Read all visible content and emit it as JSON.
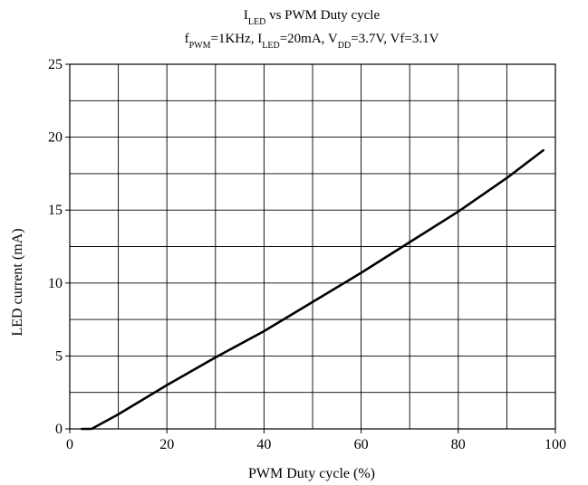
{
  "chart_data": {
    "type": "line",
    "title": {
      "parts": [
        {
          "text": "I",
          "sub": false
        },
        {
          "text": "LED",
          "sub": true
        },
        {
          "text": " vs PWM Duty cycle",
          "sub": false
        }
      ]
    },
    "subtitle": {
      "parts": [
        {
          "text": "f",
          "sub": false
        },
        {
          "text": "PWM",
          "sub": true
        },
        {
          "text": "=1KHz, I",
          "sub": false
        },
        {
          "text": "LED",
          "sub": true
        },
        {
          "text": "=20mA, V",
          "sub": false
        },
        {
          "text": "DD",
          "sub": true
        },
        {
          "text": "=3.7V, Vf=3.1V",
          "sub": false
        }
      ]
    },
    "xlabel": "PWM Duty cycle (%)",
    "ylabel": "LED current (mA)",
    "xlim": [
      0,
      100
    ],
    "ylim": [
      0,
      25
    ],
    "x_ticks": [
      0,
      20,
      40,
      60,
      80,
      100
    ],
    "y_ticks": [
      0,
      5,
      10,
      15,
      20,
      25
    ],
    "x_grid_step": 10,
    "y_grid_step": 2.5,
    "grid": true,
    "line_color": "#000000",
    "series": [
      {
        "values": [
          {
            "x": 2.5,
            "y": 0
          },
          {
            "x": 4.5,
            "y": 0
          },
          {
            "x": 10,
            "y": 1.0
          },
          {
            "x": 20,
            "y": 3.0
          },
          {
            "x": 30,
            "y": 4.9
          },
          {
            "x": 40,
            "y": 6.7
          },
          {
            "x": 50,
            "y": 8.7
          },
          {
            "x": 60,
            "y": 10.7
          },
          {
            "x": 70,
            "y": 12.8
          },
          {
            "x": 80,
            "y": 14.9
          },
          {
            "x": 90,
            "y": 17.2
          },
          {
            "x": 97.5,
            "y": 19.1
          }
        ]
      }
    ]
  }
}
